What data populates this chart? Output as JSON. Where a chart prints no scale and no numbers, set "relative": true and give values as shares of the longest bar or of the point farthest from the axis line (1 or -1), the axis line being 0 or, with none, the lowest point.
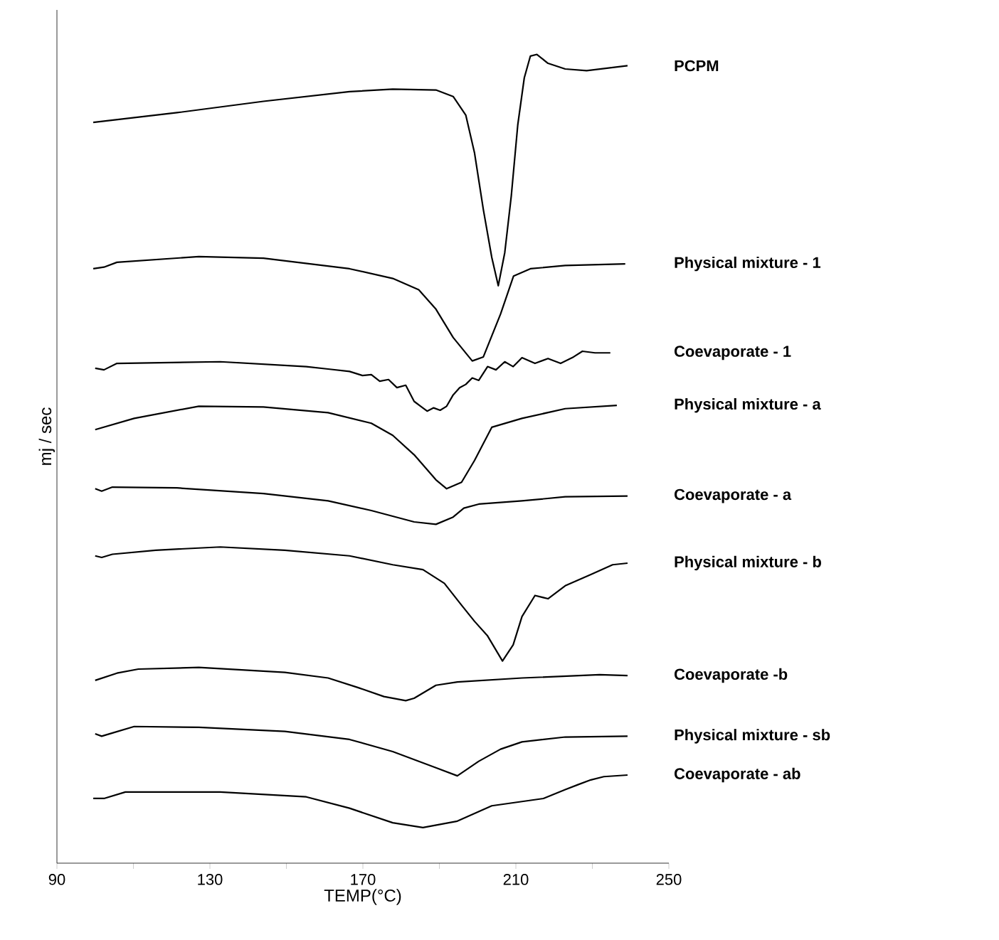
{
  "chart_data": {
    "type": "line",
    "xlabel": "TEMP(°C)",
    "ylabel": "mj / sec",
    "relative": true,
    "tick_labels": "x",
    "line_style": "solid",
    "xlim": [
      90,
      250
    ],
    "xticks": [
      90,
      {
        "value": 110,
        "label": null
      },
      130,
      {
        "value": 150,
        "label": null
      },
      170,
      {
        "value": 190,
        "label": null
      },
      210,
      {
        "value": 230,
        "label": null
      },
      250
    ],
    "series": [
      {
        "name": "PCPM",
        "color": "#000000",
        "x": [
          99.5,
          121.4,
          144.0,
          166.5,
          177.8,
          189.1,
          193.6,
          196.9,
          199.2,
          201.5,
          203.7,
          205.4,
          207.1,
          208.8,
          210.5,
          212.2,
          213.8,
          215.5,
          218.4,
          222.9,
          228.5,
          239.2
        ],
        "values": [
          0.916,
          0.928,
          0.942,
          0.954,
          0.957,
          0.956,
          0.948,
          0.925,
          0.878,
          0.808,
          0.749,
          0.714,
          0.755,
          0.825,
          0.913,
          0.971,
          0.998,
          1.0,
          0.989,
          0.982,
          0.98,
          0.986
        ]
      },
      {
        "name": "Physical mixture - 1",
        "color": "#000000",
        "x": [
          99.5,
          102.3,
          105.7,
          127.1,
          144.0,
          166.5,
          177.8,
          184.6,
          189.1,
          193.6,
          198.6,
          201.5,
          206.0,
          209.4,
          213.8,
          222.9,
          238.6
        ],
        "values": [
          0.735,
          0.737,
          0.743,
          0.75,
          0.748,
          0.735,
          0.723,
          0.709,
          0.685,
          0.65,
          0.621,
          0.626,
          0.679,
          0.726,
          0.735,
          0.739,
          0.741
        ]
      },
      {
        "name": "Coevaporate - 1",
        "color": "#000000",
        "x": [
          100.0,
          102.3,
          105.7,
          132.7,
          155.2,
          160.9,
          166.5,
          169.9,
          172.2,
          174.4,
          176.7,
          178.9,
          181.2,
          183.4,
          185.1,
          186.8,
          188.5,
          190.2,
          191.9,
          193.6,
          195.3,
          196.9,
          198.6,
          200.3,
          202.6,
          204.8,
          207.1,
          209.3,
          211.6,
          215.0,
          218.4,
          221.7,
          225.1,
          227.4,
          230.7,
          234.7
        ],
        "values": [
          0.612,
          0.61,
          0.618,
          0.62,
          0.614,
          0.611,
          0.608,
          0.603,
          0.604,
          0.596,
          0.598,
          0.588,
          0.591,
          0.571,
          0.565,
          0.559,
          0.563,
          0.56,
          0.565,
          0.579,
          0.588,
          0.592,
          0.6,
          0.597,
          0.614,
          0.61,
          0.62,
          0.614,
          0.625,
          0.618,
          0.624,
          0.618,
          0.626,
          0.633,
          0.631,
          0.631
        ]
      },
      {
        "name": "Physical mixture - a",
        "color": "#000000",
        "x": [
          100.0,
          110.2,
          127.1,
          144.0,
          160.9,
          172.2,
          177.8,
          183.4,
          189.1,
          191.9,
          195.8,
          199.2,
          203.7,
          211.6,
          222.9,
          236.4
        ],
        "values": [
          0.536,
          0.55,
          0.565,
          0.564,
          0.557,
          0.544,
          0.529,
          0.505,
          0.474,
          0.463,
          0.471,
          0.498,
          0.539,
          0.55,
          0.562,
          0.566
        ]
      },
      {
        "name": "Coevaporate - a",
        "color": "#000000",
        "x": [
          100.0,
          101.7,
          104.5,
          121.4,
          144.0,
          160.9,
          172.2,
          183.4,
          189.1,
          193.6,
          196.4,
          200.3,
          211.6,
          222.9,
          239.2
        ],
        "values": [
          0.463,
          0.46,
          0.465,
          0.464,
          0.457,
          0.448,
          0.436,
          0.422,
          0.419,
          0.428,
          0.439,
          0.444,
          0.448,
          0.453,
          0.454
        ]
      },
      {
        "name": "Physical mixture - b",
        "color": "#000000",
        "x": [
          100.0,
          101.7,
          104.5,
          115.8,
          132.7,
          149.6,
          166.5,
          177.8,
          185.7,
          191.3,
          195.8,
          199.2,
          202.6,
          206.5,
          209.3,
          211.6,
          215.0,
          218.4,
          222.9,
          229.6,
          235.3,
          239.2
        ],
        "values": [
          0.38,
          0.378,
          0.382,
          0.387,
          0.391,
          0.387,
          0.38,
          0.369,
          0.363,
          0.346,
          0.319,
          0.299,
          0.281,
          0.25,
          0.27,
          0.305,
          0.331,
          0.327,
          0.343,
          0.357,
          0.369,
          0.371
        ]
      },
      {
        "name": "Coevaporate -b",
        "color": "#000000",
        "x": [
          100.0,
          105.7,
          111.3,
          127.1,
          149.6,
          160.9,
          168.8,
          175.5,
          181.2,
          183.4,
          189.1,
          194.7,
          211.6,
          231.9,
          239.2
        ],
        "values": [
          0.226,
          0.235,
          0.24,
          0.242,
          0.236,
          0.229,
          0.217,
          0.206,
          0.201,
          0.204,
          0.22,
          0.224,
          0.229,
          0.233,
          0.232
        ]
      },
      {
        "name": "Physical mixture - sb",
        "color": "#000000",
        "x": [
          100.0,
          101.7,
          104.5,
          110.2,
          127.1,
          149.6,
          166.5,
          177.8,
          189.1,
          194.7,
          200.3,
          206.0,
          211.6,
          222.9,
          239.2
        ],
        "values": [
          0.16,
          0.157,
          0.161,
          0.169,
          0.168,
          0.163,
          0.153,
          0.138,
          0.118,
          0.108,
          0.126,
          0.141,
          0.15,
          0.156,
          0.157
        ]
      },
      {
        "name": "Coevaporate - ab",
        "color": "#000000",
        "x": [
          99.5,
          99.5,
          102.3,
          107.9,
          132.7,
          155.2,
          166.5,
          177.8,
          185.7,
          194.7,
          203.7,
          217.2,
          222.9,
          226.2,
          229.6,
          233.0,
          239.2
        ],
        "values": [
          0.08,
          0.08,
          0.08,
          0.088,
          0.088,
          0.082,
          0.068,
          0.05,
          0.044,
          0.052,
          0.071,
          0.08,
          0.091,
          0.097,
          0.103,
          0.107,
          0.109
        ]
      }
    ]
  }
}
